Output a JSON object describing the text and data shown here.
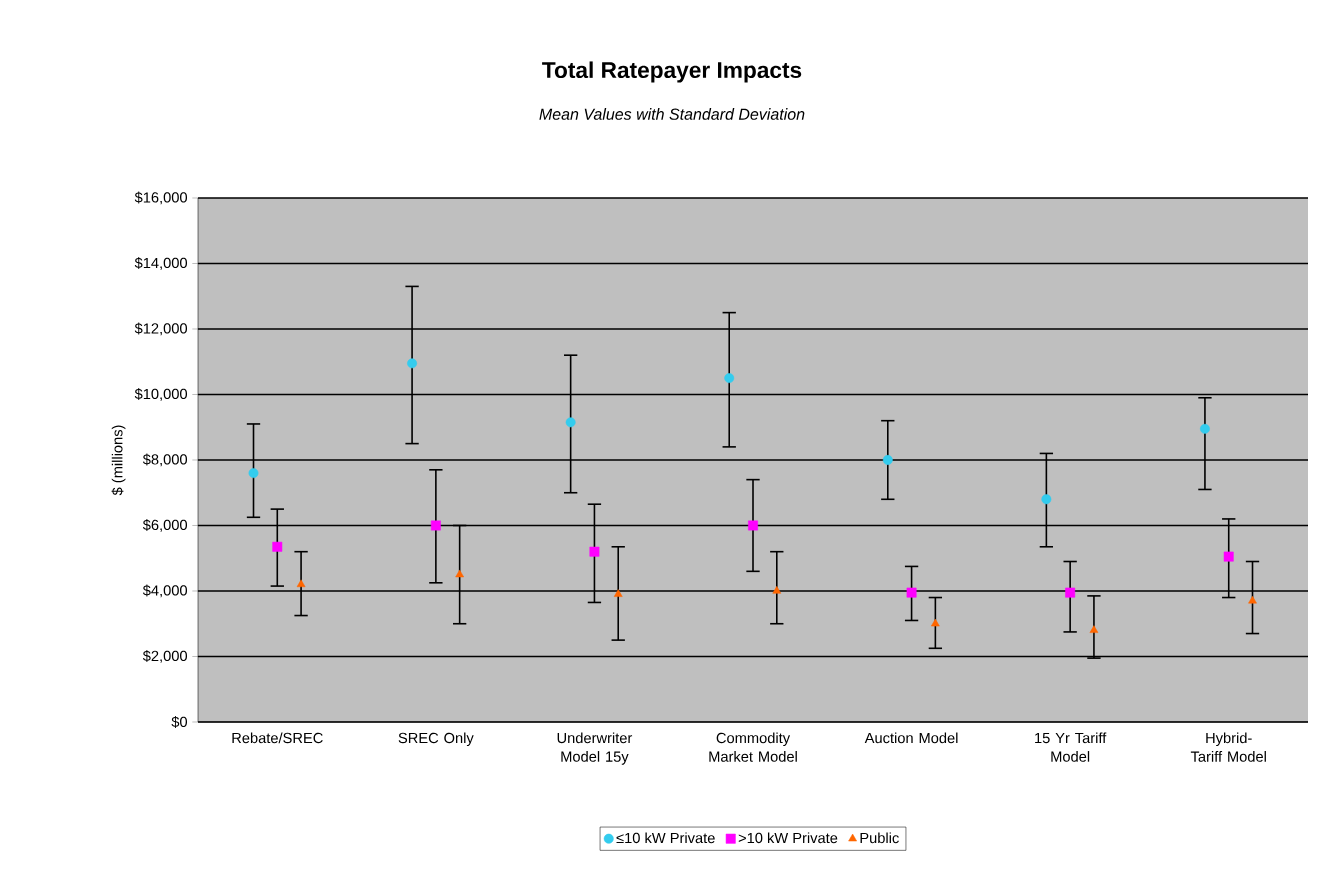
{
  "chart_data": {
    "type": "scatter",
    "title": "Total Ratepayer Impacts",
    "subtitle": "*Mean Values with Standard Deviation*",
    "ylabel": "$ (millions)",
    "categories": [
      "Rebate/SREC",
      "SREC Only",
      "Underwriter Model 15y",
      "Commodity Market Model",
      "Auction Model",
      "15 Yr Tariff Model",
      "Hybrid-Tariff Model"
    ],
    "ylim": [
      0,
      16000
    ],
    "yticks": [
      {
        "value": 0,
        "label": "$0"
      },
      {
        "value": 2000,
        "label": "$2,000"
      },
      {
        "value": 4000,
        "label": "$4,000"
      },
      {
        "value": 6000,
        "label": "$6,000"
      },
      {
        "value": 8000,
        "label": "$8,000"
      },
      {
        "value": 10000,
        "label": "$10,000"
      },
      {
        "value": 12000,
        "label": "$12,000"
      },
      {
        "value": 14000,
        "label": "$14,000"
      },
      {
        "value": 16000,
        "label": "$16,000"
      }
    ],
    "grid": "y",
    "legend": "bottom",
    "series": [
      {
        "name": "≤10 kW Private",
        "color": "#33ccee",
        "marker": "circle",
        "values": [
          7600,
          10950,
          9150,
          10500,
          8000,
          6800,
          8950
        ],
        "errors": [
          [
            6250,
            9100
          ],
          [
            8500,
            13300
          ],
          [
            7000,
            11200
          ],
          [
            8400,
            12500
          ],
          [
            6800,
            9200
          ],
          [
            5350,
            8200
          ],
          [
            7100,
            9900
          ]
        ]
      },
      {
        "name": ">10 kW Private",
        "color": "#ff00ff",
        "marker": "square",
        "values": [
          5350,
          6000,
          5200,
          6000,
          3950,
          3950,
          5050
        ],
        "errors": [
          [
            4150,
            6500
          ],
          [
            4250,
            7700
          ],
          [
            3650,
            6650
          ],
          [
            4600,
            7400
          ],
          [
            3100,
            4750
          ],
          [
            2750,
            4900
          ],
          [
            3800,
            6200
          ]
        ]
      },
      {
        "name": "Public",
        "color": "#ff6600",
        "marker": "triangle",
        "values": [
          4200,
          4500,
          3900,
          4000,
          3000,
          2800,
          3700
        ],
        "errors": [
          [
            3250,
            5200
          ],
          [
            3000,
            6000
          ],
          [
            2500,
            5350
          ],
          [
            3000,
            5200
          ],
          [
            2250,
            3800
          ],
          [
            1950,
            3850
          ],
          [
            2700,
            4900
          ]
        ]
      }
    ]
  }
}
